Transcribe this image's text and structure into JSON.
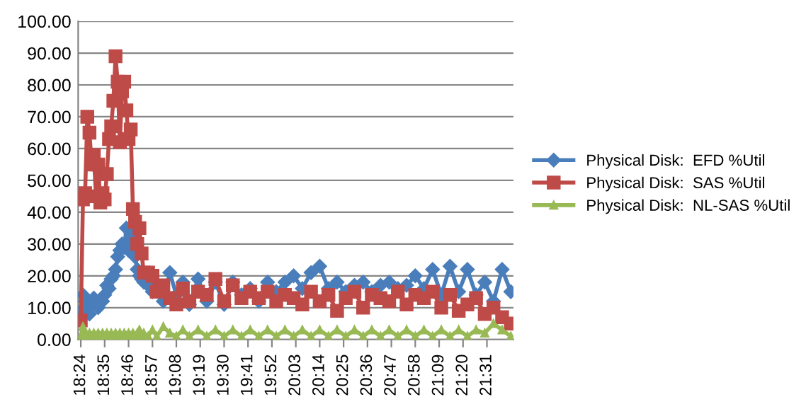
{
  "chart_data": {
    "type": "line",
    "x": [
      18.4,
      18.4167,
      18.4333,
      18.45,
      18.4667,
      18.4833,
      18.5,
      18.5167,
      18.5333,
      18.55,
      18.5667,
      18.5833,
      18.6,
      18.6167,
      18.6333,
      18.65,
      18.6667,
      18.6833,
      18.7,
      18.7167,
      18.7333,
      18.75,
      18.7667,
      18.7833,
      18.8,
      18.8167,
      18.8333,
      18.85,
      18.8667,
      18.8833,
      18.9167,
      18.95,
      18.9833,
      19.0333,
      19.0833,
      19.1333,
      19.1833,
      19.2333,
      19.3,
      19.3667,
      19.4333,
      19.5,
      19.5667,
      19.6333,
      19.7,
      19.7667,
      19.8333,
      19.9,
      19.9667,
      20.0333,
      20.1,
      20.1667,
      20.2333,
      20.3,
      20.3667,
      20.4333,
      20.5,
      20.5667,
      20.6333,
      20.7,
      20.7667,
      20.8333,
      20.9,
      20.9667,
      21.0333,
      21.1,
      21.1667,
      21.2333,
      21.3,
      21.3667,
      21.4333,
      21.5,
      21.5667,
      21.6333,
      21.7
    ],
    "series": [
      {
        "name": "Physical Disk:  EFD %Util",
        "color": "#4a7ebb",
        "marker": "diamond",
        "values": [
          9,
          14,
          12,
          10,
          8,
          12,
          13,
          11,
          10,
          12,
          12,
          14,
          17,
          16,
          19,
          20,
          22,
          26,
          28,
          30,
          29,
          35,
          28,
          31,
          33,
          26,
          22,
          20,
          19,
          18,
          17,
          15,
          16,
          12,
          21,
          14,
          18,
          11,
          19,
          12,
          18,
          11,
          18,
          14,
          16,
          12,
          18,
          15,
          18,
          20,
          16,
          21,
          23,
          16,
          18,
          15,
          17,
          18,
          15,
          17,
          18,
          16,
          17,
          20,
          16,
          22,
          14,
          23,
          15,
          22,
          14,
          18,
          12,
          22,
          15
        ]
      },
      {
        "name": "Physical Disk:  SAS %Util",
        "color": "#be4b48",
        "marker": "square",
        "values": [
          6,
          44,
          46,
          70,
          65,
          55,
          58,
          45,
          55,
          43,
          46,
          44,
          52,
          63,
          67,
          75,
          89,
          81,
          62,
          78,
          81,
          72,
          63,
          66,
          41,
          37,
          30,
          35,
          27,
          21,
          21,
          20,
          15,
          17,
          13,
          11,
          16,
          12,
          15,
          14,
          19,
          12,
          17,
          13,
          15,
          13,
          15,
          12,
          14,
          13,
          11,
          15,
          12,
          14,
          9,
          13,
          15,
          10,
          14,
          13,
          12,
          15,
          11,
          14,
          13,
          15,
          10,
          14,
          9,
          11,
          13,
          8,
          10,
          7,
          5
        ]
      },
      {
        "name": "Physical Disk:  NL-SAS %Util",
        "color": "#98b954",
        "marker": "triangle",
        "values": [
          1,
          4,
          2,
          1,
          2,
          1,
          2,
          1,
          2,
          1,
          2,
          1,
          2,
          1,
          2,
          1,
          2,
          1,
          2,
          1,
          2,
          1,
          2,
          1,
          2,
          1,
          2,
          3,
          1,
          2,
          1,
          3,
          1,
          4,
          2,
          1,
          3,
          1,
          3,
          1,
          3,
          1,
          3,
          1,
          3,
          1,
          3,
          1,
          3,
          1,
          3,
          1,
          3,
          1,
          3,
          1,
          3,
          1,
          3,
          1,
          3,
          1,
          3,
          1,
          3,
          1,
          3,
          1,
          3,
          1,
          3,
          2,
          5,
          3,
          1
        ]
      }
    ],
    "xlim": [
      18.38,
      21.72
    ],
    "xticks": [
      {
        "value": 18.4,
        "label": "18:24"
      },
      {
        "value": 18.5833,
        "label": "18:35"
      },
      {
        "value": 18.7667,
        "label": "18:46"
      },
      {
        "value": 18.95,
        "label": "18:57"
      },
      {
        "value": 19.1333,
        "label": "19:08"
      },
      {
        "value": 19.3167,
        "label": "19:19"
      },
      {
        "value": 19.5,
        "label": "19:30"
      },
      {
        "value": 19.6833,
        "label": "19:41"
      },
      {
        "value": 19.8667,
        "label": "19:52"
      },
      {
        "value": 20.05,
        "label": "20:03"
      },
      {
        "value": 20.2333,
        "label": "20:14"
      },
      {
        "value": 20.4167,
        "label": "20:25"
      },
      {
        "value": 20.6,
        "label": "20:36"
      },
      {
        "value": 20.7833,
        "label": "20:47"
      },
      {
        "value": 20.9667,
        "label": "20:58"
      },
      {
        "value": 21.15,
        "label": "21:09"
      },
      {
        "value": 21.3333,
        "label": "21:20"
      },
      {
        "value": 21.5167,
        "label": "21:31"
      }
    ],
    "ylim": [
      0,
      100
    ],
    "yticks": [
      {
        "value": 0,
        "label": "0.00"
      },
      {
        "value": 10,
        "label": "10.00"
      },
      {
        "value": 20,
        "label": "20.00"
      },
      {
        "value": 30,
        "label": "30.00"
      },
      {
        "value": 40,
        "label": "40.00"
      },
      {
        "value": 50,
        "label": "50.00"
      },
      {
        "value": 60,
        "label": "60.00"
      },
      {
        "value": 70,
        "label": "70.00"
      },
      {
        "value": 80,
        "label": "80.00"
      },
      {
        "value": 90,
        "label": "90.00"
      },
      {
        "value": 100,
        "label": "100.00"
      }
    ],
    "grid": "y",
    "legend": "right",
    "line_style": "solid"
  }
}
